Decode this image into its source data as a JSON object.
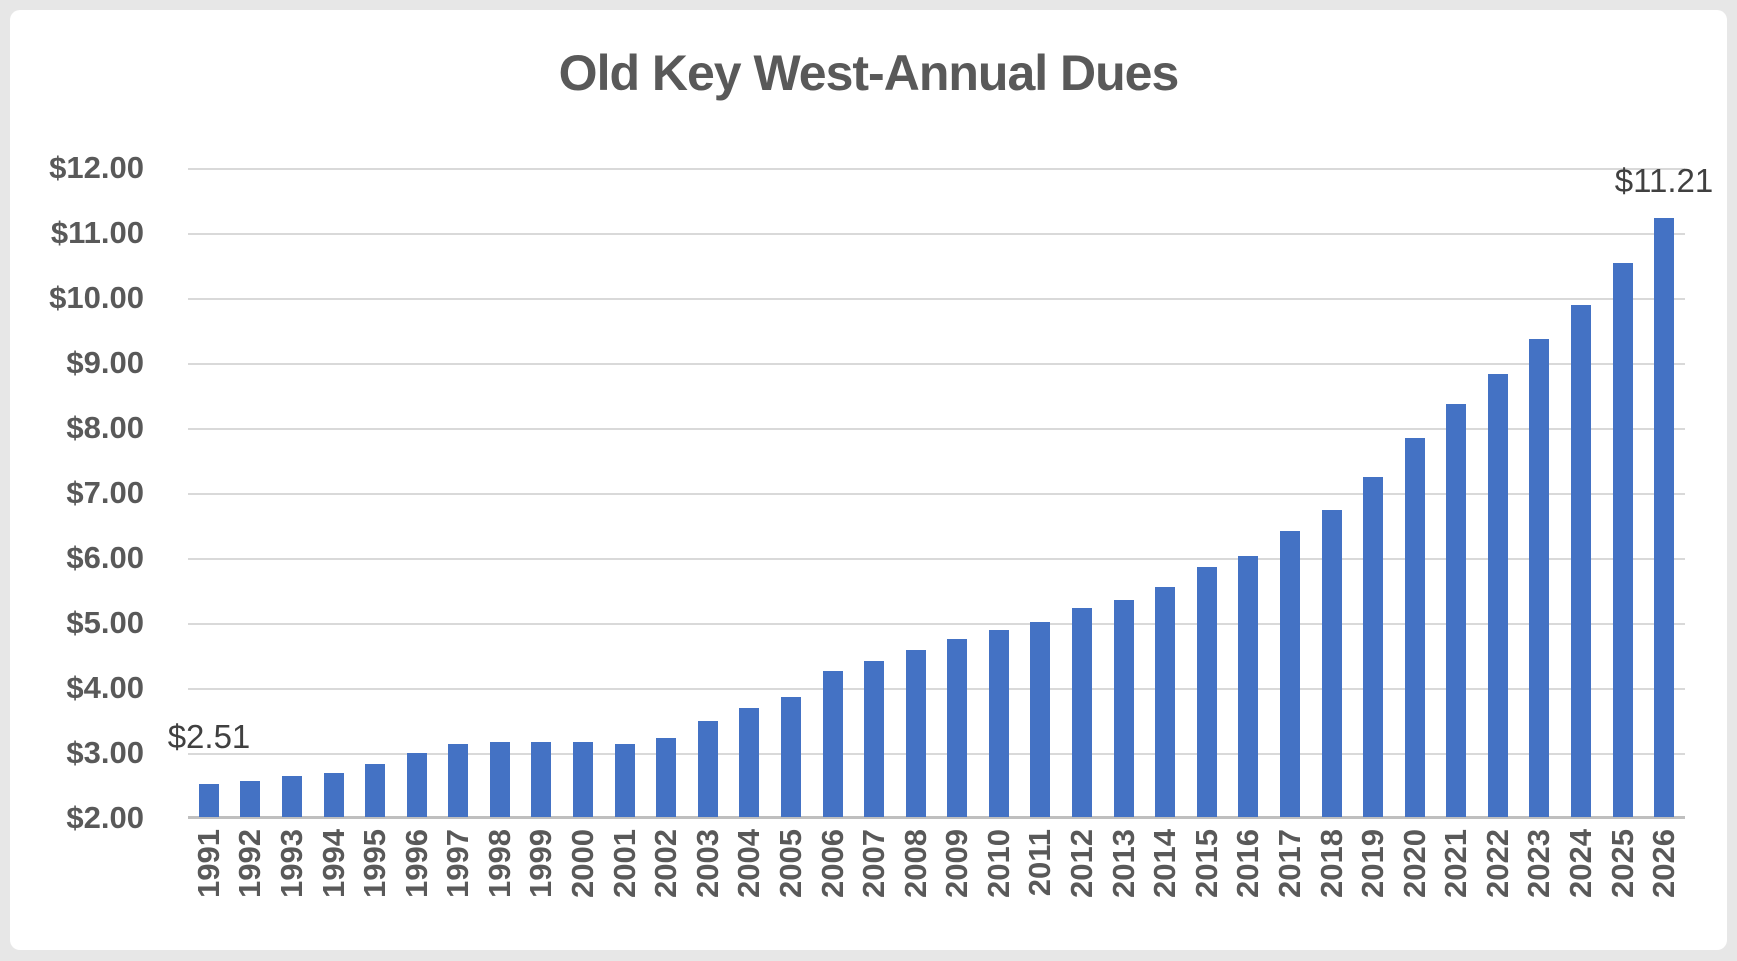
{
  "chart": {
    "title": "Old Key West-Annual Dues"
  },
  "chart_data": {
    "type": "bar",
    "title": "Old Key West-Annual Dues",
    "categories": [
      "1991",
      "1992",
      "1993",
      "1994",
      "1995",
      "1996",
      "1997",
      "1998",
      "1999",
      "2000",
      "2001",
      "2002",
      "2003",
      "2004",
      "2005",
      "2006",
      "2007",
      "2008",
      "2009",
      "2010",
      "2011",
      "2012",
      "2013",
      "2014",
      "2015",
      "2016",
      "2017",
      "2018",
      "2019",
      "2020",
      "2021",
      "2022",
      "2023",
      "2024",
      "2025",
      "2026"
    ],
    "values": [
      2.51,
      2.56,
      2.63,
      2.68,
      2.82,
      2.98,
      3.13,
      3.15,
      3.16,
      3.16,
      3.12,
      3.21,
      3.48,
      3.67,
      3.85,
      4.24,
      4.4,
      4.57,
      4.74,
      4.88,
      5.0,
      5.21,
      5.34,
      5.54,
      5.84,
      6.02,
      6.4,
      6.72,
      7.23,
      7.83,
      8.36,
      8.81,
      9.36,
      9.87,
      10.52,
      11.21
    ],
    "xlabel": "",
    "ylabel": "",
    "ylim": [
      2,
      12
    ],
    "ytick_step": 1,
    "ytick_labels": [
      "$2.00",
      "$3.00",
      "$4.00",
      "$5.00",
      "$6.00",
      "$7.00",
      "$8.00",
      "$9.00",
      "$10.00",
      "$11.00",
      "$12.00"
    ],
    "grid": true,
    "legend": false,
    "annotations": [
      {
        "index": 0,
        "text": "$2.51",
        "gap": 30
      },
      {
        "index": 35,
        "text": "$11.21",
        "gap": 20
      }
    ],
    "colors": {
      "bar": "#4472c4",
      "gridline": "#d9d9d9",
      "axis_line": "#bfbfbf",
      "axis_text": "#595959",
      "title_text": "#595959",
      "data_label_text": "#404040",
      "card_background": "#ffffff",
      "page_background": "#e7e7e7"
    }
  }
}
